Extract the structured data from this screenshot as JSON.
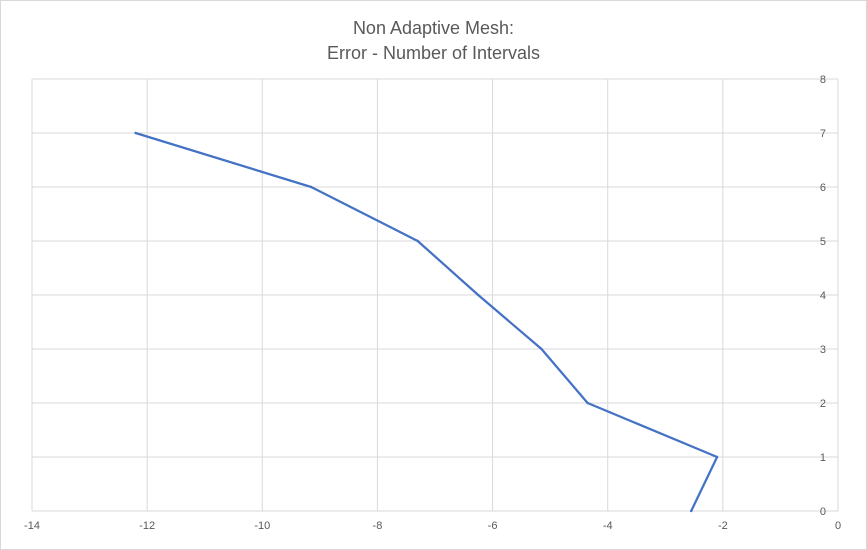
{
  "chart_data": {
    "type": "line",
    "title": "Non Adaptive Mesh:",
    "subtitle": "Error - Number of Intervals",
    "xlabel": "",
    "ylabel": "",
    "xlim": [
      -14,
      0
    ],
    "ylim": [
      0,
      8
    ],
    "x_ticks": [
      -14,
      -12,
      -10,
      -8,
      -6,
      -4,
      -2,
      0
    ],
    "y_ticks": [
      0,
      1,
      2,
      3,
      4,
      5,
      6,
      7,
      8
    ],
    "grid": true,
    "legend": "none",
    "series": [
      {
        "color": "#4472c4",
        "points": [
          {
            "x": -12.2,
            "y": 7
          },
          {
            "x": -9.15,
            "y": 6
          },
          {
            "x": -7.3,
            "y": 5
          },
          {
            "x": -6.25,
            "y": 4
          },
          {
            "x": -5.15,
            "y": 3
          },
          {
            "x": -4.35,
            "y": 2
          },
          {
            "x": -2.1,
            "y": 1
          },
          {
            "x": -2.55,
            "y": 0
          }
        ]
      }
    ]
  }
}
